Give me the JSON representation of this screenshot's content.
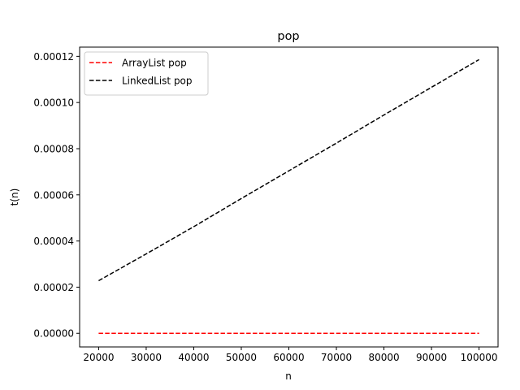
{
  "chart_data": {
    "type": "line",
    "title": "pop",
    "xlabel": "n",
    "ylabel": "t(n)",
    "xlim": [
      16000,
      104000
    ],
    "ylim": [
      -5.9e-06,
      0.000124
    ],
    "x_ticks": [
      20000,
      30000,
      40000,
      50000,
      60000,
      70000,
      80000,
      90000,
      100000
    ],
    "x_tick_labels": [
      "20000",
      "30000",
      "40000",
      "50000",
      "60000",
      "70000",
      "80000",
      "90000",
      "100000"
    ],
    "y_ticks": [
      0,
      2e-05,
      4e-05,
      6e-05,
      8e-05,
      0.0001,
      0.00012
    ],
    "y_tick_labels": [
      "0.00000",
      "0.00002",
      "0.00004",
      "0.00006",
      "0.00008",
      "0.00010",
      "0.00012"
    ],
    "grid": false,
    "legend_position": "top-left",
    "x": [
      20000,
      30000,
      40000,
      50000,
      60000,
      70000,
      80000,
      90000,
      100000
    ],
    "series": [
      {
        "name": "ArrayList pop",
        "color": "#ff0000",
        "line_style": "dashed",
        "values": [
          0,
          0,
          0,
          0,
          0,
          0,
          0,
          0,
          0
        ]
      },
      {
        "name": "LinkedList pop",
        "color": "#000000",
        "line_style": "dashed",
        "values": [
          2.28e-05,
          3.44e-05,
          4.62e-05,
          5.84e-05,
          7.04e-05,
          8.24e-05,
          9.46e-05,
          0.0001066,
          0.0001186
        ]
      }
    ]
  }
}
